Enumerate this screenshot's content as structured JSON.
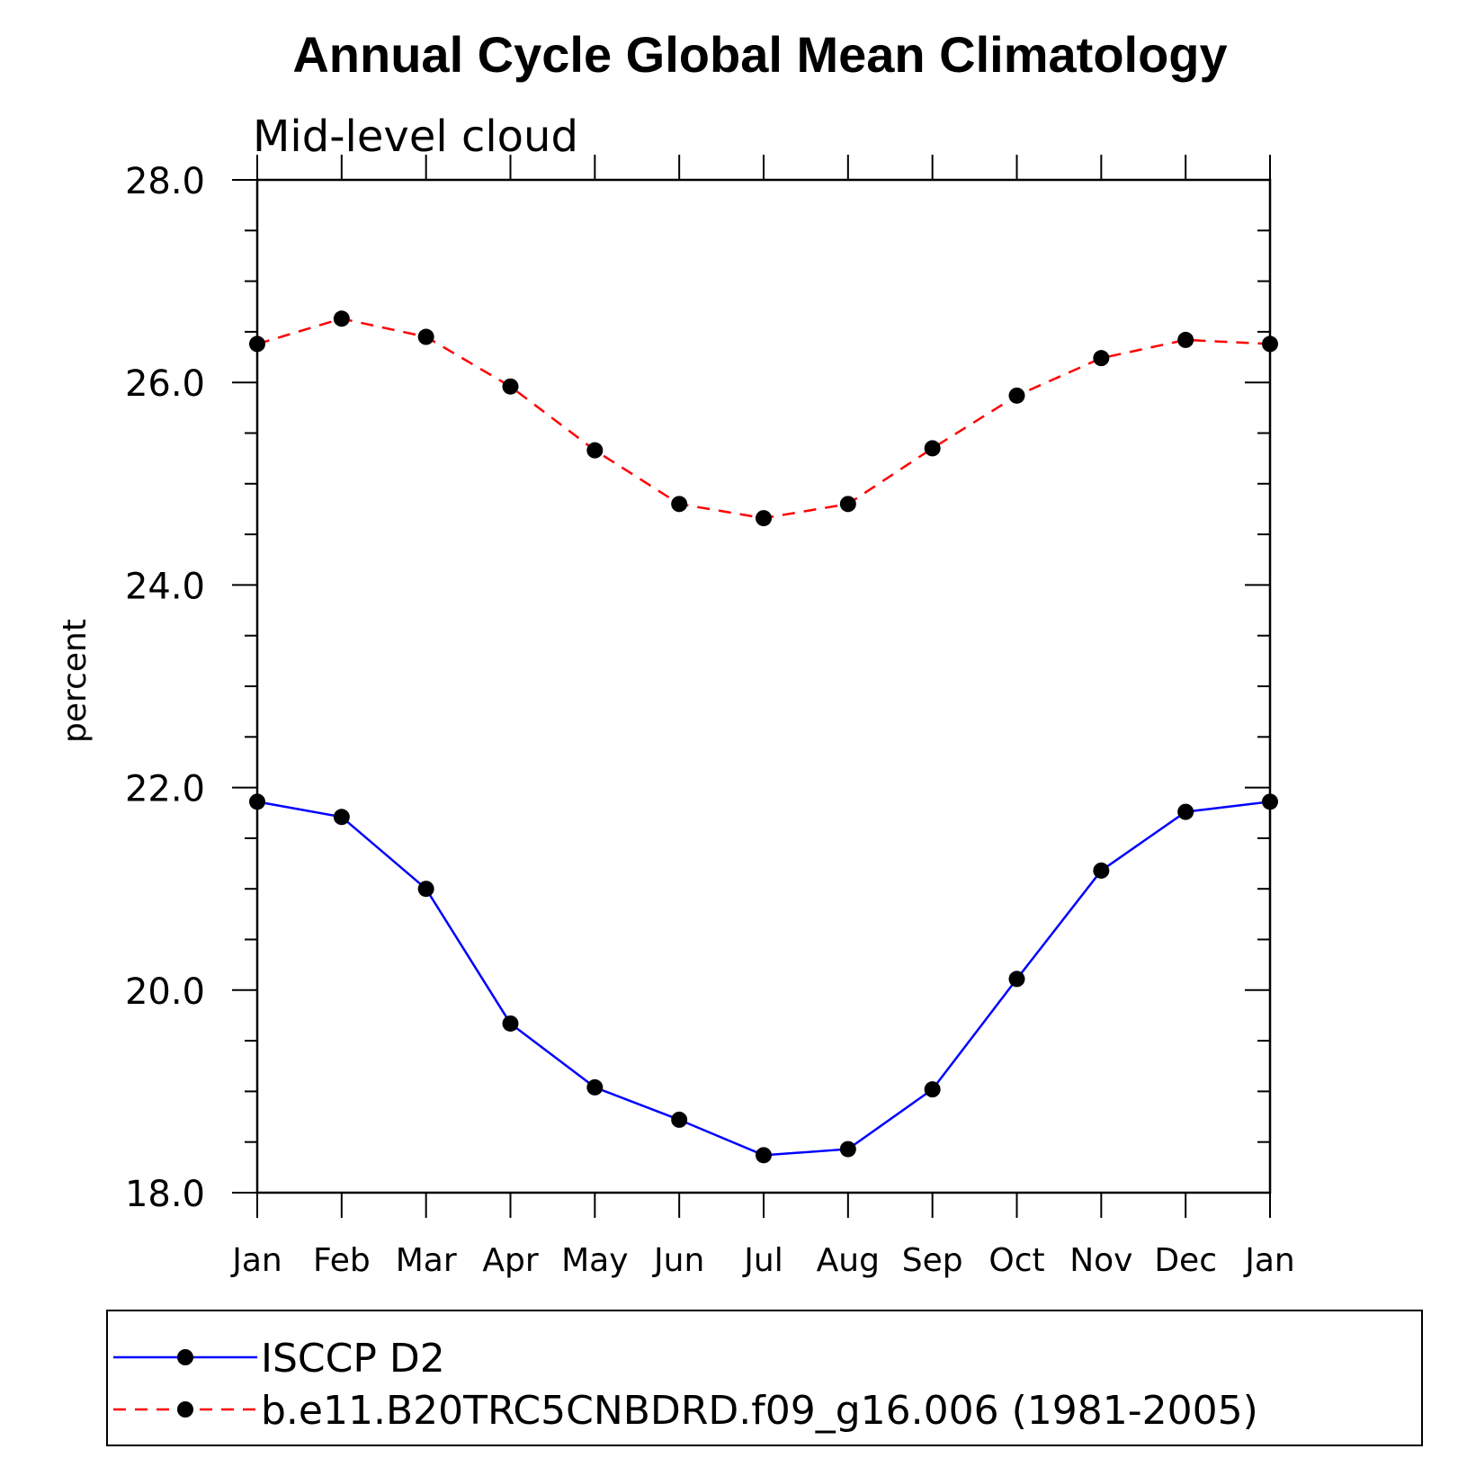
{
  "chart_data": {
    "type": "line",
    "title": "Annual Cycle Global Mean Climatology",
    "subtitle": "Mid-level cloud",
    "xlabel": "",
    "ylabel": "percent",
    "categories": [
      "Jan",
      "Feb",
      "Mar",
      "Apr",
      "May",
      "Jun",
      "Jul",
      "Aug",
      "Sep",
      "Oct",
      "Nov",
      "Dec",
      "Jan"
    ],
    "ylim": [
      18.0,
      28.0
    ],
    "yticks": [
      "18.0",
      "20.0",
      "22.0",
      "24.0",
      "26.0",
      "28.0"
    ],
    "grid": false,
    "legend_position": "bottom",
    "series": [
      {
        "name": "ISCCP D2",
        "color": "#0000ff",
        "style": "solid",
        "values": [
          21.86,
          21.71,
          21.0,
          19.67,
          19.04,
          18.72,
          18.37,
          18.43,
          19.02,
          20.11,
          21.18,
          21.76,
          21.86
        ]
      },
      {
        "name": "b.e11.B20TRC5CNBDRD.f09_g16.006 (1981-2005)",
        "color": "#ff0000",
        "style": "dashed",
        "values": [
          26.38,
          26.63,
          26.45,
          25.96,
          25.33,
          24.8,
          24.66,
          24.8,
          25.35,
          25.87,
          26.24,
          26.42,
          26.38
        ]
      }
    ]
  }
}
